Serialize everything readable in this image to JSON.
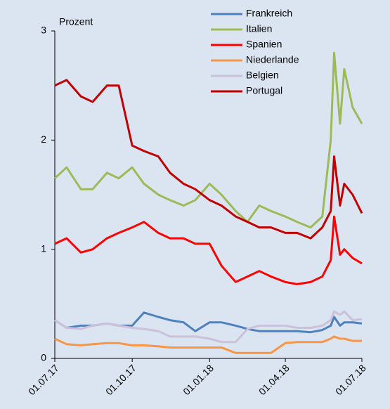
{
  "chart_data": {
    "type": "line",
    "y_label": "Prozent",
    "x": [
      "01.07.17",
      "15.07.17",
      "01.08.17",
      "15.08.17",
      "01.09.17",
      "15.09.17",
      "01.10.17",
      "15.10.17",
      "01.11.17",
      "15.11.17",
      "01.12.17",
      "15.12.17",
      "01.01.18",
      "15.01.18",
      "01.02.18",
      "15.02.18",
      "01.03.18",
      "15.03.18",
      "01.04.18",
      "15.04.18",
      "01.05.18",
      "15.05.18",
      "25.05.18",
      "29.05.18",
      "05.06.18",
      "10.06.18",
      "20.06.18",
      "01.07.18"
    ],
    "xlim": [
      "01.07.17",
      "01.07.18"
    ],
    "xticks": [
      "01.07.17",
      "01.10.17",
      "01.01.18",
      "01.04.18",
      "01.07.18"
    ],
    "ylim": [
      0,
      3
    ],
    "yticks": [
      0,
      1,
      2,
      3
    ],
    "legend": "top-right",
    "series": [
      {
        "name": "Frankreich",
        "color": "#4f81bd",
        "values": [
          0.35,
          0.28,
          0.3,
          0.3,
          0.32,
          0.3,
          0.3,
          0.42,
          0.38,
          0.35,
          0.33,
          0.25,
          0.33,
          0.33,
          0.3,
          0.27,
          0.25,
          0.25,
          0.25,
          0.25,
          0.24,
          0.26,
          0.3,
          0.38,
          0.3,
          0.33,
          0.33,
          0.32
        ]
      },
      {
        "name": "Italien",
        "color": "#9bbb59",
        "values": [
          1.65,
          1.75,
          1.55,
          1.55,
          1.7,
          1.65,
          1.75,
          1.6,
          1.5,
          1.45,
          1.4,
          1.45,
          1.6,
          1.5,
          1.35,
          1.25,
          1.4,
          1.35,
          1.3,
          1.25,
          1.2,
          1.3,
          2.0,
          2.8,
          2.15,
          2.65,
          2.3,
          2.15
        ]
      },
      {
        "name": "Spanien",
        "color": "#ff0000",
        "values": [
          1.05,
          1.1,
          0.97,
          1.0,
          1.1,
          1.15,
          1.2,
          1.25,
          1.15,
          1.1,
          1.1,
          1.05,
          1.05,
          0.85,
          0.7,
          0.75,
          0.8,
          0.75,
          0.7,
          0.68,
          0.7,
          0.75,
          0.9,
          1.3,
          0.95,
          1.0,
          0.92,
          0.87
        ]
      },
      {
        "name": "Niederlande",
        "color": "#f79646",
        "values": [
          0.18,
          0.13,
          0.12,
          0.13,
          0.14,
          0.14,
          0.12,
          0.12,
          0.11,
          0.1,
          0.1,
          0.1,
          0.1,
          0.1,
          0.05,
          0.05,
          0.05,
          0.05,
          0.14,
          0.15,
          0.15,
          0.15,
          0.18,
          0.2,
          0.18,
          0.18,
          0.16,
          0.16
        ]
      },
      {
        "name": "Belgien",
        "color": "#ccc0da",
        "values": [
          0.35,
          0.28,
          0.27,
          0.3,
          0.32,
          0.3,
          0.28,
          0.27,
          0.25,
          0.2,
          0.2,
          0.2,
          0.18,
          0.15,
          0.15,
          0.27,
          0.3,
          0.3,
          0.3,
          0.28,
          0.28,
          0.3,
          0.35,
          0.43,
          0.4,
          0.43,
          0.35,
          0.36
        ]
      },
      {
        "name": "Portugal",
        "color": "#c00000",
        "values": [
          2.5,
          2.55,
          2.4,
          2.35,
          2.5,
          2.5,
          1.95,
          1.9,
          1.85,
          1.7,
          1.6,
          1.55,
          1.45,
          1.4,
          1.3,
          1.25,
          1.2,
          1.2,
          1.15,
          1.15,
          1.1,
          1.2,
          1.35,
          1.85,
          1.4,
          1.6,
          1.5,
          1.33
        ]
      }
    ]
  }
}
